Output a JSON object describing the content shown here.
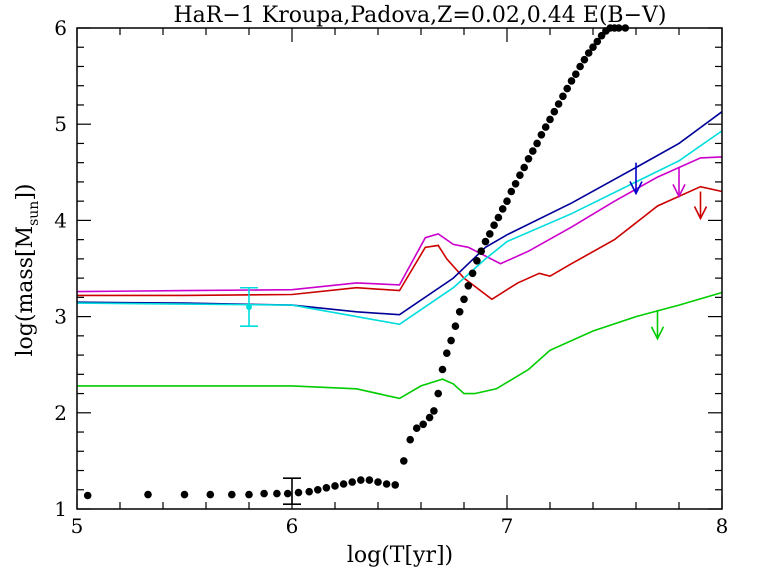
{
  "chart_data": {
    "type": "line",
    "title": "HaR−1  Kroupa,Padova,Z=0.02,0.44  E(B−V)",
    "xlabel": "log(T[yr])",
    "ylabel_main": "log(mass[M",
    "ylabel_sub": "sun",
    "ylabel_end": "])",
    "xlim": [
      5,
      8
    ],
    "ylim": [
      1,
      6
    ],
    "x_ticks": [
      5,
      6,
      7,
      8
    ],
    "y_ticks": [
      1,
      2,
      3,
      4,
      5,
      6
    ],
    "x_tick_labels": [
      "5",
      "6",
      "7",
      "8"
    ],
    "y_tick_labels": [
      "1",
      "2",
      "3",
      "4",
      "5",
      "6"
    ],
    "series": [
      {
        "color": "#cc00cc",
        "x": [
          5.0,
          5.5,
          6.0,
          6.3,
          6.5,
          6.62,
          6.68,
          6.75,
          6.82,
          6.97,
          7.1,
          7.3,
          7.5,
          7.7,
          7.9,
          8.0
        ],
        "y": [
          3.26,
          3.27,
          3.28,
          3.35,
          3.33,
          3.82,
          3.86,
          3.75,
          3.72,
          3.55,
          3.68,
          3.93,
          4.2,
          4.45,
          4.65,
          4.66
        ]
      },
      {
        "color": "#cc0000",
        "x": [
          5.0,
          5.5,
          6.0,
          6.3,
          6.5,
          6.62,
          6.68,
          6.72,
          6.8,
          6.93,
          7.05,
          7.15,
          7.2,
          7.3,
          7.5,
          7.7,
          7.9,
          8.0
        ],
        "y": [
          3.22,
          3.22,
          3.23,
          3.3,
          3.27,
          3.72,
          3.74,
          3.6,
          3.4,
          3.18,
          3.35,
          3.45,
          3.42,
          3.55,
          3.8,
          4.15,
          4.35,
          4.3
        ]
      },
      {
        "color": "#000099",
        "x": [
          5.0,
          5.5,
          6.0,
          6.3,
          6.5,
          6.75,
          6.9,
          7.0,
          7.3,
          7.6,
          7.8,
          8.0
        ],
        "y": [
          3.15,
          3.14,
          3.12,
          3.05,
          3.02,
          3.4,
          3.72,
          3.85,
          4.18,
          4.55,
          4.8,
          5.13
        ]
      },
      {
        "color": "#00dddd",
        "x": [
          5.0,
          5.5,
          6.0,
          6.3,
          6.5,
          6.75,
          6.9,
          7.0,
          7.3,
          7.6,
          7.8,
          8.0
        ],
        "y": [
          3.14,
          3.13,
          3.12,
          3.0,
          2.92,
          3.3,
          3.6,
          3.78,
          4.07,
          4.4,
          4.62,
          4.93
        ]
      },
      {
        "color": "#00cc00",
        "x": [
          5.0,
          5.5,
          6.0,
          6.3,
          6.5,
          6.6,
          6.7,
          6.75,
          6.8,
          6.85,
          6.95,
          7.1,
          7.2,
          7.4,
          7.6,
          7.8,
          8.0
        ],
        "y": [
          2.28,
          2.28,
          2.28,
          2.25,
          2.15,
          2.28,
          2.35,
          2.3,
          2.2,
          2.2,
          2.25,
          2.45,
          2.65,
          2.85,
          3.0,
          3.12,
          3.25
        ]
      }
    ],
    "scatter": {
      "color": "#000000",
      "x": [
        5.05,
        5.33,
        5.5,
        5.62,
        5.72,
        5.8,
        5.87,
        5.93,
        5.98,
        6.03,
        6.08,
        6.12,
        6.16,
        6.2,
        6.24,
        6.28,
        6.32,
        6.36,
        6.4,
        6.44,
        6.48,
        6.52,
        6.55,
        6.58,
        6.61,
        6.64,
        6.66,
        6.68,
        6.7,
        6.72,
        6.74,
        6.76,
        6.78,
        6.8,
        6.82,
        6.84,
        6.86,
        6.88,
        6.9,
        6.92,
        6.94,
        6.96,
        6.98,
        7.0,
        7.02,
        7.04,
        7.06,
        7.08,
        7.1,
        7.12,
        7.14,
        7.16,
        7.18,
        7.2,
        7.22,
        7.24,
        7.26,
        7.28,
        7.3,
        7.32,
        7.34,
        7.36,
        7.38,
        7.4,
        7.42,
        7.44,
        7.46,
        7.48,
        7.5,
        7.52,
        7.55
      ],
      "y": [
        1.14,
        1.15,
        1.15,
        1.15,
        1.15,
        1.15,
        1.16,
        1.16,
        1.16,
        1.17,
        1.18,
        1.2,
        1.22,
        1.24,
        1.26,
        1.28,
        1.3,
        1.3,
        1.28,
        1.26,
        1.25,
        1.5,
        1.72,
        1.84,
        1.88,
        1.95,
        2.02,
        2.2,
        2.45,
        2.62,
        2.75,
        2.9,
        3.05,
        3.18,
        3.32,
        3.45,
        3.58,
        3.68,
        3.78,
        3.86,
        3.95,
        4.03,
        4.12,
        4.2,
        4.3,
        4.38,
        4.47,
        4.55,
        4.64,
        4.72,
        4.8,
        4.89,
        4.97,
        5.05,
        5.13,
        5.21,
        5.29,
        5.37,
        5.45,
        5.52,
        5.6,
        5.67,
        5.74,
        5.8,
        5.86,
        5.92,
        5.97,
        6.0,
        6.0,
        6.0,
        6.0
      ]
    },
    "error_bars": [
      {
        "color": "#00dddd",
        "x": 5.8,
        "y": 3.1,
        "ylo": 2.9,
        "yhi": 3.3,
        "marker": true
      },
      {
        "color": "#000000",
        "x": 6.0,
        "y": 1.15,
        "ylo": 1.05,
        "yhi": 1.32,
        "marker": false
      }
    ],
    "arrows": [
      {
        "color": "#0000cc",
        "x": 7.6,
        "y_top": 4.6,
        "y_bottom": 4.28
      },
      {
        "color": "#cc00cc",
        "x": 7.8,
        "y_top": 4.55,
        "y_bottom": 4.25
      },
      {
        "color": "#cc0000",
        "x": 7.9,
        "y_top": 4.3,
        "y_bottom": 4.02
      },
      {
        "color": "#00cc00",
        "x": 7.7,
        "y_top": 3.07,
        "y_bottom": 2.77
      }
    ]
  }
}
